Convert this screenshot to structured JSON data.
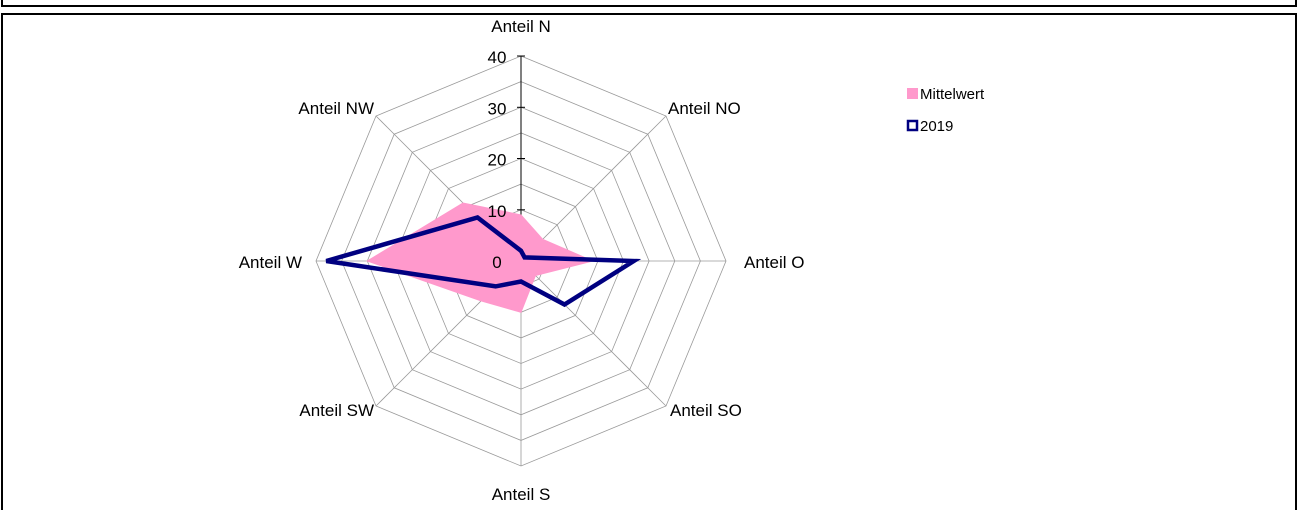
{
  "chart_data": {
    "type": "radar",
    "categories": [
      "Anteil N",
      "Anteil NO",
      "Anteil O",
      "Anteil SO",
      "Anteil S",
      "Anteil SW",
      "Anteil W",
      "Anteil NW"
    ],
    "rlim": [
      0,
      40
    ],
    "ticks": [
      "0",
      "10",
      "20",
      "30",
      "40"
    ],
    "tick_values": [
      0,
      10,
      20,
      30,
      40
    ],
    "grid": true,
    "legend_position": "top-right",
    "series": [
      {
        "name": "Mittelwert",
        "values": [
          9,
          6,
          14,
          4,
          10,
          11,
          30,
          16
        ],
        "fill": "#ff99cc",
        "stroke": "#ff99cc",
        "style": "area"
      },
      {
        "name": "2019",
        "values": [
          2,
          1,
          22,
          12,
          4,
          7,
          38,
          12
        ],
        "fill": "none",
        "stroke": "#000080",
        "style": "line"
      }
    ]
  }
}
